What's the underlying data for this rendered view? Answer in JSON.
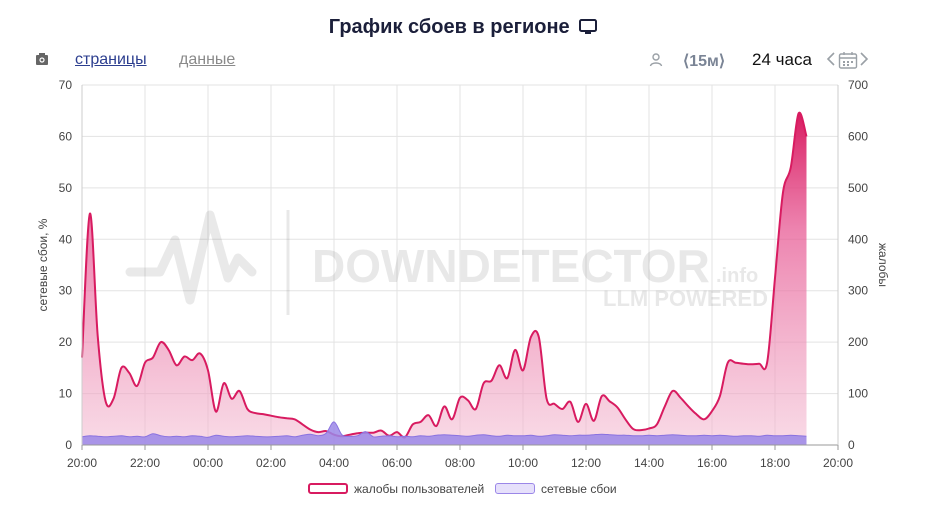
{
  "header": {
    "title": "График сбоев в регионе",
    "title_icon": "monitor-icon"
  },
  "toolbar": {
    "camera_icon": "camera-icon",
    "tab_pages": "страницы",
    "tab_data": "данные",
    "user_icon": "user-icon",
    "interval": "⟨15м⟩",
    "range": "24 часа",
    "calendar_icon": "calendar-icon"
  },
  "watermark": {
    "brand": "DOWNDETECTOR",
    "suffix": ".info",
    "tagline": "LLM POWERED"
  },
  "colors": {
    "complaints": "#d81b60",
    "outages": "#9b87e8",
    "grid": "#e3e3e3"
  },
  "chart_data": {
    "type": "area",
    "xlabel": "",
    "ylabel_left": "сетевые сбои, %",
    "ylabel_right": "жалобы",
    "x_range": [
      "20:00",
      "20:00"
    ],
    "x_ticks": [
      "20:00",
      "22:00",
      "00:00",
      "02:00",
      "04:00",
      "06:00",
      "08:00",
      "10:00",
      "12:00",
      "14:00",
      "16:00",
      "18:00",
      "20:00"
    ],
    "y_left_ticks": [
      "0",
      "10",
      "20",
      "30",
      "40",
      "50",
      "60",
      "70"
    ],
    "y_right_ticks": [
      "0",
      "100",
      "200",
      "300",
      "400",
      "500",
      "600",
      "700"
    ],
    "ylim_left": [
      0,
      70
    ],
    "ylim_right": [
      0,
      700
    ],
    "grid": true,
    "legend_position": "bottom",
    "series": [
      {
        "name": "жалобы пользователей",
        "axis": "right",
        "x": [
          "20:00",
          "20:15",
          "20:30",
          "20:45",
          "21:00",
          "21:15",
          "21:30",
          "21:45",
          "22:00",
          "22:15",
          "22:30",
          "22:45",
          "23:00",
          "23:15",
          "23:30",
          "23:45",
          "00:00",
          "00:15",
          "00:30",
          "00:45",
          "01:00",
          "01:15",
          "01:30",
          "01:45",
          "02:00",
          "02:15",
          "02:30",
          "02:45",
          "03:00",
          "03:15",
          "03:30",
          "03:45",
          "04:00",
          "04:15",
          "04:30",
          "04:45",
          "05:00",
          "05:15",
          "05:30",
          "05:45",
          "06:00",
          "06:15",
          "06:30",
          "06:45",
          "07:00",
          "07:15",
          "07:30",
          "07:45",
          "08:00",
          "08:15",
          "08:30",
          "08:45",
          "09:00",
          "09:15",
          "09:30",
          "09:45",
          "10:00",
          "10:15",
          "10:30",
          "10:45",
          "11:00",
          "11:15",
          "11:30",
          "11:45",
          "12:00",
          "12:15",
          "12:30",
          "12:45",
          "13:00",
          "13:15",
          "13:30",
          "13:45",
          "14:00",
          "14:15",
          "14:30",
          "14:45",
          "15:00",
          "15:15",
          "15:30",
          "15:45",
          "16:00",
          "16:15",
          "16:30",
          "16:45",
          "17:00",
          "17:15",
          "17:30",
          "17:45",
          "18:00",
          "18:15",
          "18:30",
          "18:45",
          "19:00"
        ],
        "values": [
          170,
          450,
          210,
          85,
          90,
          150,
          140,
          115,
          160,
          170,
          200,
          185,
          155,
          172,
          165,
          178,
          145,
          65,
          120,
          90,
          105,
          70,
          62,
          60,
          57,
          54,
          52,
          50,
          40,
          30,
          25,
          27,
          20,
          17,
          20,
          23,
          24,
          24,
          28,
          18,
          25,
          15,
          40,
          45,
          58,
          37,
          75,
          50,
          92,
          87,
          70,
          120,
          125,
          155,
          130,
          185,
          145,
          210,
          210,
          90,
          80,
          70,
          84,
          45,
          80,
          47,
          95,
          85,
          73,
          50,
          31,
          29,
          32,
          40,
          75,
          105,
          92,
          75,
          60,
          50,
          66,
          95,
          160,
          160,
          158,
          157,
          158,
          160,
          325,
          490,
          540,
          645,
          600
        ]
      },
      {
        "name": "сетевые сбои",
        "axis": "left",
        "x": [
          "20:00",
          "20:15",
          "20:30",
          "20:45",
          "21:00",
          "21:15",
          "21:30",
          "21:45",
          "22:00",
          "22:15",
          "22:30",
          "22:45",
          "23:00",
          "23:15",
          "23:30",
          "23:45",
          "00:00",
          "00:15",
          "00:30",
          "00:45",
          "01:00",
          "01:15",
          "01:30",
          "01:45",
          "02:00",
          "02:15",
          "02:30",
          "02:45",
          "03:00",
          "03:15",
          "03:30",
          "03:45",
          "04:00",
          "04:15",
          "04:30",
          "04:45",
          "05:00",
          "05:15",
          "05:30",
          "05:45",
          "06:00",
          "06:15",
          "06:30",
          "06:45",
          "07:00",
          "07:15",
          "07:30",
          "07:45",
          "08:00",
          "08:15",
          "08:30",
          "08:45",
          "09:00",
          "09:15",
          "09:30",
          "09:45",
          "10:00",
          "10:15",
          "10:30",
          "10:45",
          "11:00",
          "11:15",
          "11:30",
          "11:45",
          "12:00",
          "12:15",
          "12:30",
          "12:45",
          "13:00",
          "13:15",
          "13:30",
          "13:45",
          "14:00",
          "14:15",
          "14:30",
          "14:45",
          "15:00",
          "15:15",
          "15:30",
          "15:45",
          "16:00",
          "16:15",
          "16:30",
          "16:45",
          "17:00",
          "17:15",
          "17:30",
          "17:45",
          "18:00",
          "18:15",
          "18:30",
          "18:45",
          "19:00"
        ],
        "values": [
          1.6,
          1.8,
          1.7,
          1.6,
          1.7,
          1.8,
          1.6,
          1.7,
          1.6,
          2.2,
          1.8,
          1.6,
          1.7,
          1.6,
          1.8,
          1.7,
          1.5,
          1.9,
          1.7,
          1.6,
          1.7,
          1.8,
          1.7,
          1.6,
          1.6,
          1.7,
          1.8,
          1.6,
          1.9,
          2.1,
          1.8,
          2.3,
          4.5,
          2.0,
          1.7,
          1.8,
          2.6,
          1.6,
          1.7,
          1.8,
          1.6,
          1.7,
          1.6,
          1.8,
          1.7,
          1.9,
          2.0,
          1.9,
          1.8,
          1.7,
          1.9,
          2.0,
          1.8,
          1.7,
          1.9,
          1.8,
          1.8,
          1.9,
          1.7,
          1.8,
          2.0,
          1.9,
          1.8,
          1.9,
          1.9,
          2.0,
          2.1,
          2.0,
          1.9,
          1.9,
          1.8,
          1.8,
          1.9,
          1.8,
          1.9,
          2.0,
          1.9,
          1.8,
          1.8,
          1.9,
          1.8,
          1.9,
          1.8,
          1.7,
          1.8,
          1.8,
          1.7,
          1.9,
          1.8,
          1.8,
          1.9,
          1.8,
          1.7
        ]
      }
    ]
  }
}
